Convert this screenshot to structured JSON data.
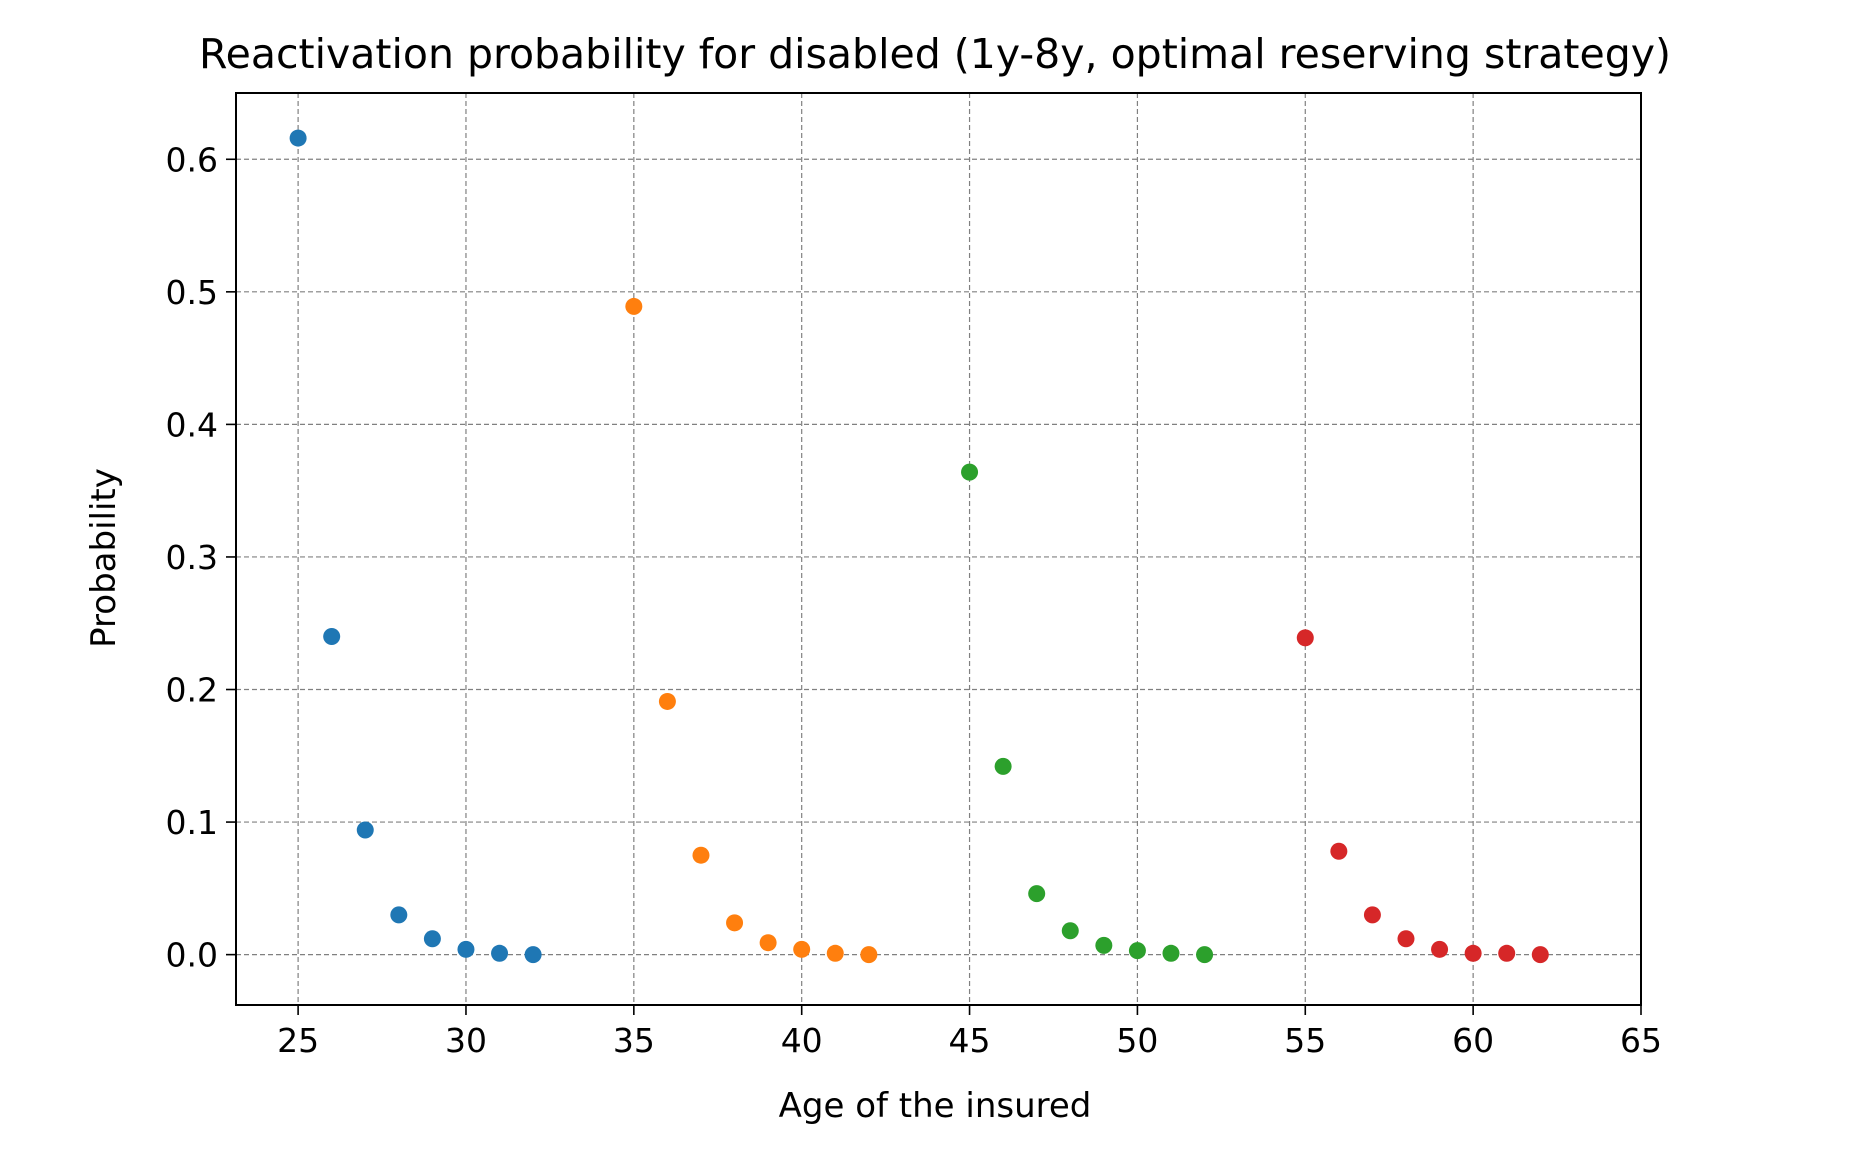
{
  "chart_data": {
    "type": "scatter",
    "title": "Reactivation probability for disabled (1y-8y, optimal reserving strategy)",
    "xlabel": "Age of the insured",
    "ylabel": "Probability",
    "xlim": [
      23.15,
      65
    ],
    "ylim": [
      -0.038,
      0.65
    ],
    "xticks": [
      25,
      30,
      35,
      40,
      45,
      50,
      55,
      60,
      65
    ],
    "yticks": [
      0.0,
      0.1,
      0.2,
      0.3,
      0.4,
      0.5,
      0.6
    ],
    "xtick_labels": [
      "25",
      "30",
      "35",
      "40",
      "45",
      "50",
      "55",
      "60",
      "65"
    ],
    "ytick_labels": [
      "0.0",
      "0.1",
      "0.2",
      "0.3",
      "0.4",
      "0.5",
      "0.6"
    ],
    "grid": true,
    "series": [
      {
        "color": "#1f77b4",
        "x": [
          25,
          26,
          27,
          28,
          29,
          30,
          31,
          32
        ],
        "y": [
          0.616,
          0.24,
          0.094,
          0.03,
          0.012,
          0.004,
          0.001,
          0.0
        ]
      },
      {
        "color": "#ff7f0e",
        "x": [
          35,
          36,
          37,
          38,
          39,
          40,
          41,
          42
        ],
        "y": [
          0.489,
          0.191,
          0.075,
          0.024,
          0.009,
          0.004,
          0.001,
          0.0
        ]
      },
      {
        "color": "#2ca02c",
        "x": [
          45,
          46,
          47,
          48,
          49,
          50,
          51,
          52
        ],
        "y": [
          0.364,
          0.142,
          0.046,
          0.018,
          0.007,
          0.003,
          0.001,
          0.0
        ]
      },
      {
        "color": "#d62728",
        "x": [
          55,
          56,
          57,
          58,
          59,
          60,
          61,
          62
        ],
        "y": [
          0.239,
          0.078,
          0.03,
          0.012,
          0.004,
          0.001,
          0.001,
          0.0
        ]
      }
    ]
  }
}
